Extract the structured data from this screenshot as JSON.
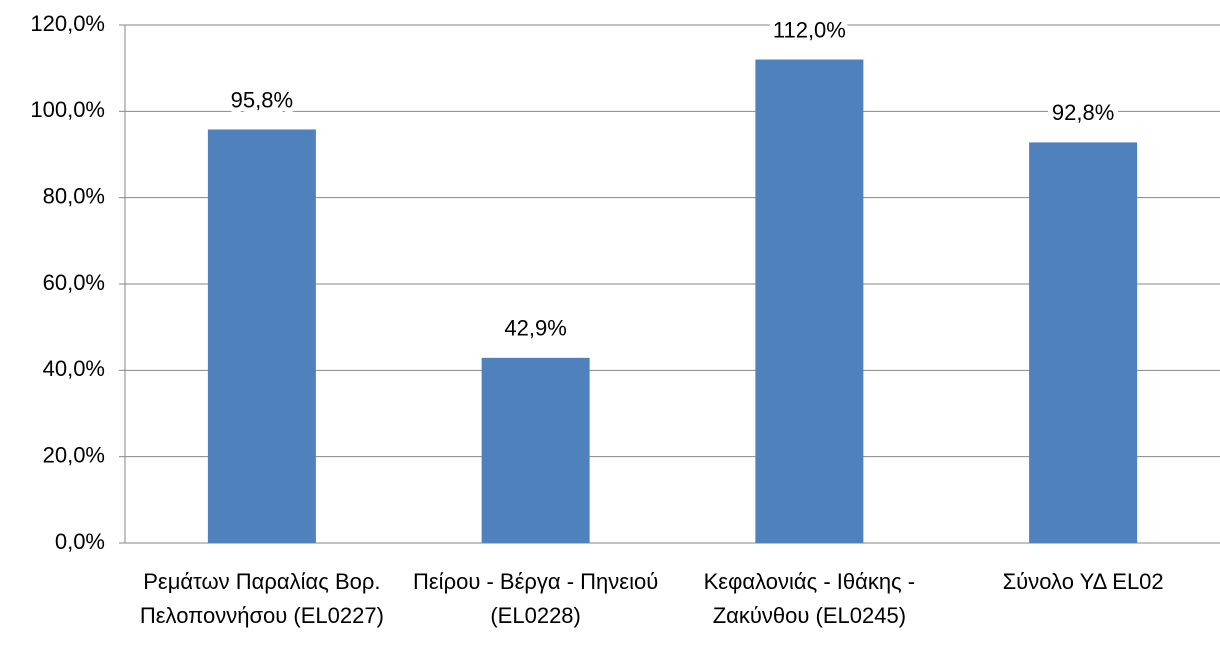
{
  "chart_data": {
    "type": "bar",
    "categories": [
      "Ρεμάτων Παραλίας Βορ. Πελοποννήσου (EL0227)",
      "Πείρου - Βέργα - Πηνειού (EL0228)",
      "Κεφαλονιάς - Ιθάκης - Ζακύνθου (EL0245)",
      "Σύνολο ΥΔ EL02"
    ],
    "values": [
      95.8,
      42.9,
      112.0,
      92.8
    ],
    "value_labels": [
      "95,8%",
      "42,9%",
      "112,0%",
      "92,8%"
    ],
    "color": "#4f81bd",
    "ylim": [
      0,
      120
    ],
    "yticks": [
      {
        "value": 0,
        "label": "0,0%"
      },
      {
        "value": 20,
        "label": "20,0%"
      },
      {
        "value": 40,
        "label": "40,0%"
      },
      {
        "value": 60,
        "label": "60,0%"
      },
      {
        "value": 80,
        "label": "80,0%"
      },
      {
        "value": 100,
        "label": "100,0%"
      },
      {
        "value": 120,
        "label": "120,0%"
      }
    ],
    "grid": true
  }
}
